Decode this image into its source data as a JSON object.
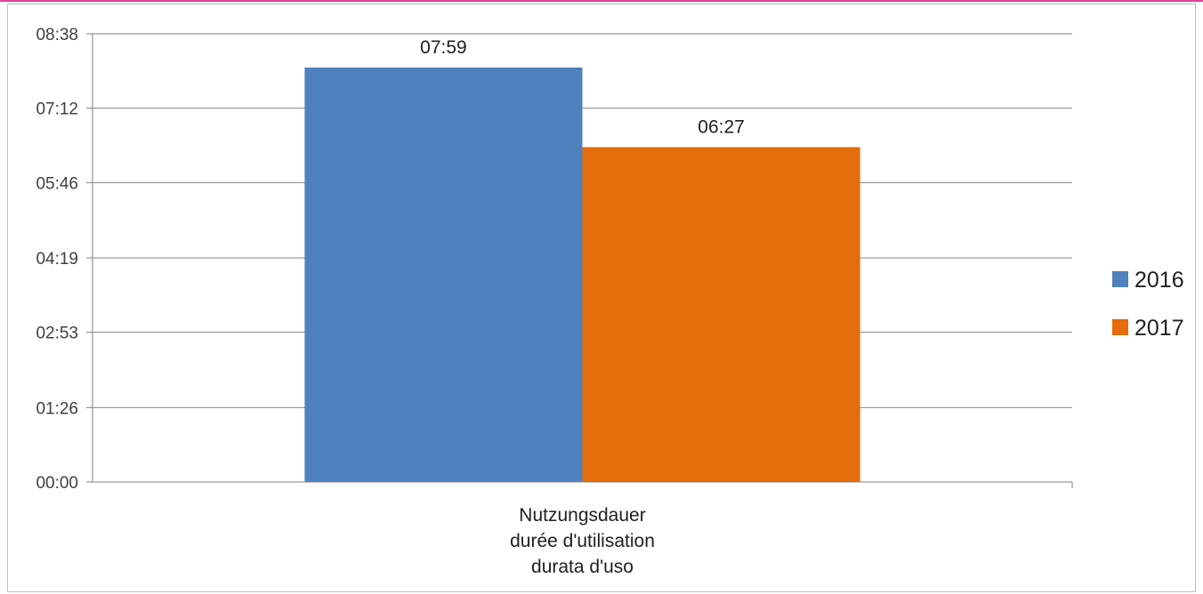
{
  "chart_data": {
    "type": "bar",
    "categories": [
      "Nutzungsdauer\ndurée d'utilisation\ndurata d'uso"
    ],
    "series": [
      {
        "name": "2016",
        "values": [
          479
        ],
        "value_labels": [
          "07:59"
        ],
        "color": "#4f81bd"
      },
      {
        "name": "2017",
        "values": [
          387
        ],
        "value_labels": [
          "06:27"
        ],
        "color": "#e46c0a"
      }
    ],
    "value_unit": "minutes (axis shows hh:mm)",
    "ylim": [
      0,
      518
    ],
    "yticks": [
      0,
      86,
      173,
      259,
      346,
      432,
      518
    ],
    "ytick_labels": [
      "00:00",
      "01:26",
      "02:53",
      "04:19",
      "05:46",
      "07:12",
      "08:38"
    ],
    "title": "",
    "xlabel": "",
    "ylabel": "",
    "grid": true,
    "legend_position": "right",
    "colors": {
      "axis": "#7f7f7f",
      "grid": "#868686",
      "frame_accent": "#e0409a"
    }
  }
}
